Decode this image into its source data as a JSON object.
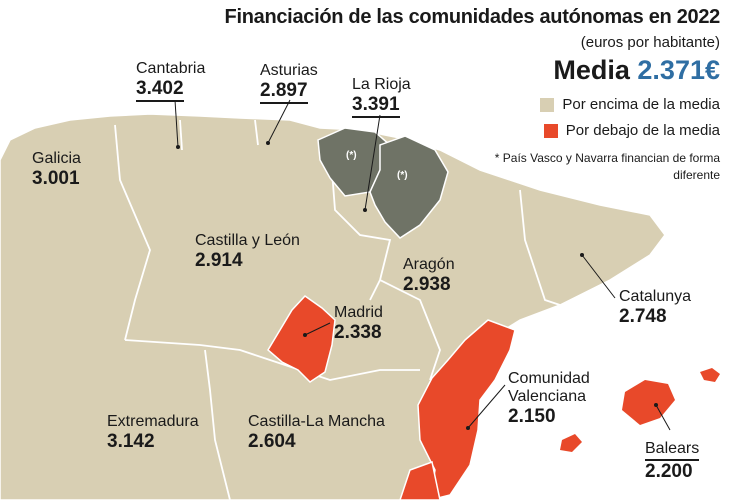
{
  "title": "Financiación de las comunidades autónomas en 2022",
  "subtitle": "(euros por habitante)",
  "average": {
    "label": "Media",
    "value": "2.371€"
  },
  "legend": [
    {
      "label": "Por encima de la media",
      "color": "#d8cfb3"
    },
    {
      "label": "Por debajo de la media",
      "color": "#e8492a"
    }
  ],
  "note": "* País Vasco y Navarra financian de forma diferente",
  "special_color": "#6f7366",
  "special_mark": "(*)",
  "regions": [
    {
      "name": "Galicia",
      "value": "3.001"
    },
    {
      "name": "Cantabria",
      "value": "3.402"
    },
    {
      "name": "Asturias",
      "value": "2.897"
    },
    {
      "name": "La Rioja",
      "value": "3.391"
    },
    {
      "name": "Castilla y León",
      "value": "2.914"
    },
    {
      "name": "Aragón",
      "value": "2.938"
    },
    {
      "name": "Catalunya",
      "value": "2.748"
    },
    {
      "name": "Madrid",
      "value": "2.338"
    },
    {
      "name": "Comunidad Valenciana",
      "value": "2.150"
    },
    {
      "name": "Extremadura",
      "value": "3.142"
    },
    {
      "name": "Castilla-La Mancha",
      "value": "2.604"
    },
    {
      "name": "Balears",
      "value": "2.200"
    }
  ]
}
